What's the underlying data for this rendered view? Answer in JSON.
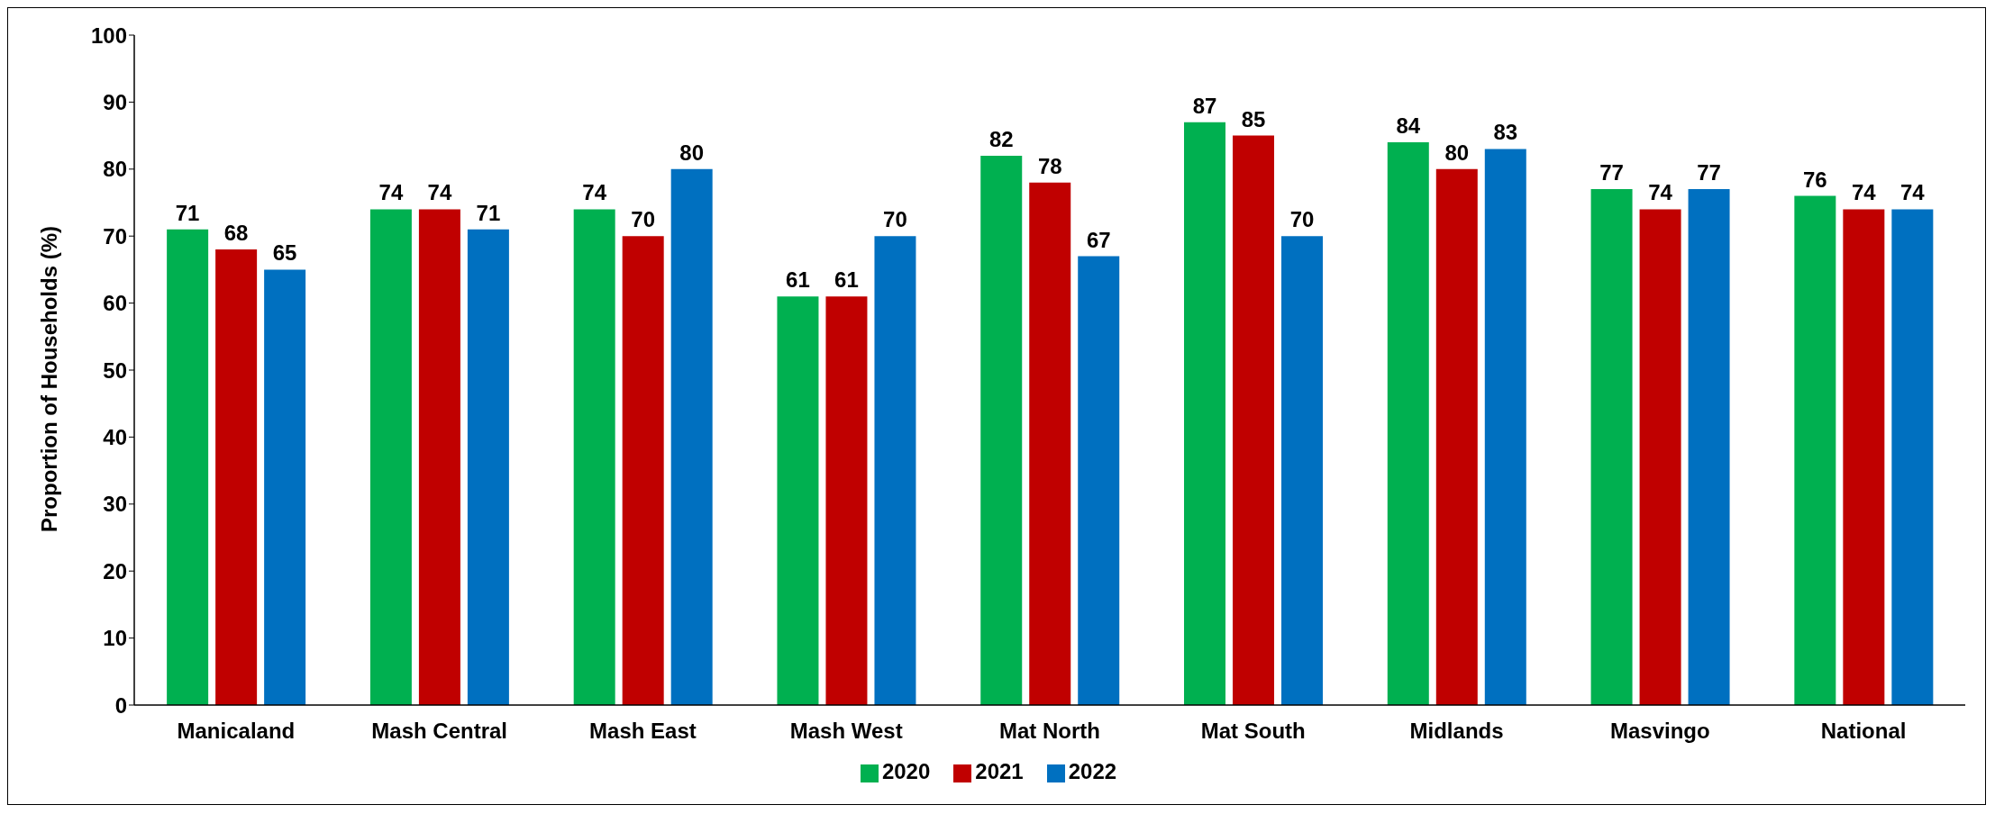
{
  "chart_data": {
    "type": "bar",
    "ylabel": "Proportion of Households (%)",
    "categories": [
      "Manicaland",
      "Mash Central",
      "Mash East",
      "Mash West",
      "Mat North",
      "Mat South",
      "Midlands",
      "Masvingo",
      "National"
    ],
    "series": [
      {
        "name": "2020",
        "color": "#00b050",
        "values": [
          71,
          74,
          74,
          61,
          82,
          87,
          84,
          77,
          76
        ]
      },
      {
        "name": "2021",
        "color": "#c00000",
        "values": [
          68,
          74,
          70,
          61,
          78,
          85,
          80,
          74,
          74
        ]
      },
      {
        "name": "2022",
        "color": "#0070c0",
        "values": [
          65,
          71,
          80,
          70,
          67,
          70,
          83,
          77,
          74
        ]
      }
    ],
    "ylim": [
      0,
      100
    ],
    "yticks": [
      0,
      10,
      20,
      30,
      40,
      50,
      60,
      70,
      80,
      90,
      100
    ],
    "grid": false,
    "legend": "bottom",
    "data_labels": true
  }
}
